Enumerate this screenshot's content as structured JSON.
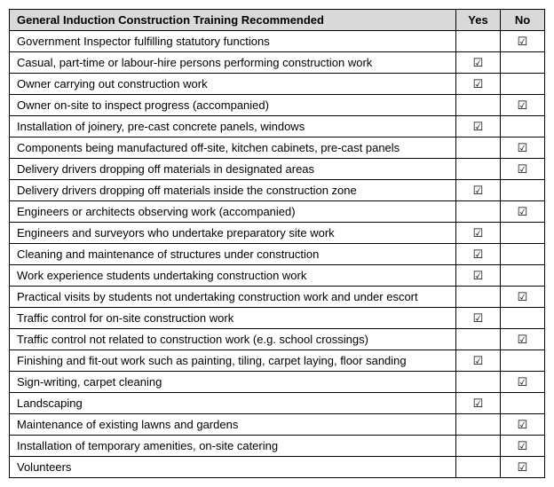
{
  "table": {
    "header": {
      "title": "General Induction Construction Training Recommended",
      "yes": "Yes",
      "no": "No"
    },
    "header_bg": "#d9d9d9",
    "border_color": "#000000",
    "font_size": 13,
    "col_widths": {
      "desc": 504,
      "yes": 50,
      "no": 50
    },
    "check_glyph": "☑",
    "rows": [
      {
        "desc": "Government Inspector fulfilling statutory functions",
        "yes": false,
        "no": true
      },
      {
        "desc": "Casual, part-time or labour-hire persons performing construction work",
        "yes": true,
        "no": false
      },
      {
        "desc": "Owner carrying out construction work",
        "yes": true,
        "no": false
      },
      {
        "desc": "Owner on-site to inspect progress (accompanied)",
        "yes": false,
        "no": true
      },
      {
        "desc": "Installation of joinery, pre-cast concrete panels, windows",
        "yes": true,
        "no": false
      },
      {
        "desc": "Components being manufactured off-site, kitchen cabinets, pre-cast panels",
        "yes": false,
        "no": true
      },
      {
        "desc": "Delivery drivers dropping off materials in designated areas",
        "yes": false,
        "no": true
      },
      {
        "desc": "Delivery drivers dropping off materials inside the construction zone",
        "yes": true,
        "no": false
      },
      {
        "desc": "Engineers or architects observing work (accompanied)",
        "yes": false,
        "no": true
      },
      {
        "desc": "Engineers and surveyors who undertake preparatory site work",
        "yes": true,
        "no": false
      },
      {
        "desc": "Cleaning and maintenance of structures under construction",
        "yes": true,
        "no": false
      },
      {
        "desc": "Work experience students undertaking construction work",
        "yes": true,
        "no": false
      },
      {
        "desc": "Practical visits by students not undertaking construction work and under escort",
        "yes": false,
        "no": true
      },
      {
        "desc": "Traffic control for on-site construction work",
        "yes": true,
        "no": false
      },
      {
        "desc": "Traffic control not related to construction work (e.g. school crossings)",
        "yes": false,
        "no": true
      },
      {
        "desc": "Finishing and fit-out work such as painting, tiling, carpet laying, floor sanding",
        "yes": true,
        "no": false
      },
      {
        "desc": "Sign-writing, carpet cleaning",
        "yes": false,
        "no": true
      },
      {
        "desc": "Landscaping",
        "yes": true,
        "no": false
      },
      {
        "desc": "Maintenance of existing lawns and gardens",
        "yes": false,
        "no": true
      },
      {
        "desc": "Installation of temporary amenities, on-site catering",
        "yes": false,
        "no": true
      },
      {
        "desc": "Volunteers",
        "yes": false,
        "no": true
      }
    ]
  }
}
